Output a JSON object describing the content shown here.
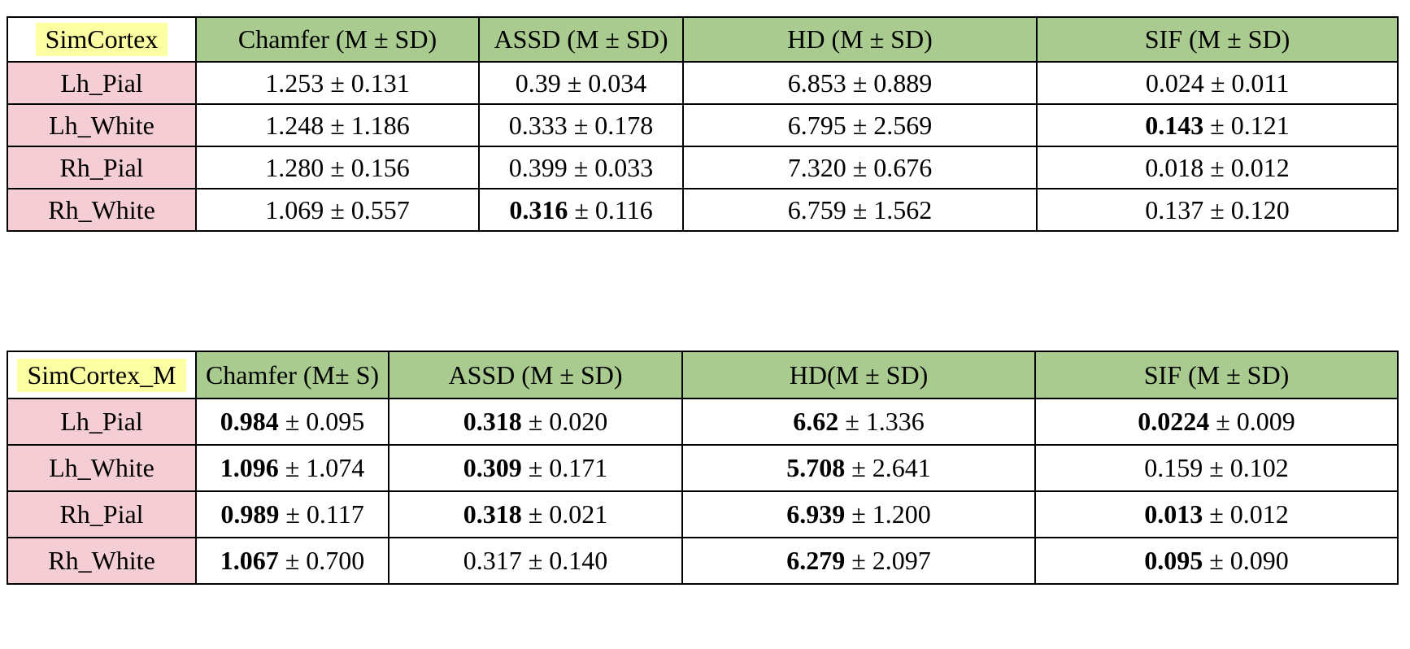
{
  "colors": {
    "header_green": "#a9cb8f",
    "row_pink": "#f5ced5",
    "highlight_yellow": "#fdffa3",
    "border_black": "#000000"
  },
  "plus_minus_symbol": "±",
  "tables": [
    {
      "name_label": "SimCortex",
      "column_headers": [
        "Chamfer (M ± SD)",
        "ASSD (M ± SD)",
        "HD (M ± SD)",
        "SIF (M ± SD)"
      ],
      "rows": [
        {
          "label": "Lh_Pial",
          "cells": [
            {
              "mean": "1.253",
              "sd": "0.131",
              "bold_mean": false
            },
            {
              "mean": "0.39",
              "sd": "0.034",
              "bold_mean": false
            },
            {
              "mean": "6.853",
              "sd": "0.889",
              "bold_mean": false
            },
            {
              "mean": "0.024",
              "sd": "0.011",
              "bold_mean": false
            }
          ]
        },
        {
          "label": "Lh_White",
          "cells": [
            {
              "mean": "1.248",
              "sd": "1.186",
              "bold_mean": false
            },
            {
              "mean": "0.333",
              "sd": "0.178",
              "bold_mean": false
            },
            {
              "mean": "6.795",
              "sd": "2.569",
              "bold_mean": false
            },
            {
              "mean": "0.143",
              "sd": "0.121",
              "bold_mean": true
            }
          ]
        },
        {
          "label": "Rh_Pial",
          "cells": [
            {
              "mean": "1.280",
              "sd": "0.156",
              "bold_mean": false
            },
            {
              "mean": "0.399",
              "sd": "0.033",
              "bold_mean": false
            },
            {
              "mean": "7.320",
              "sd": "0.676",
              "bold_mean": false
            },
            {
              "mean": "0.018",
              "sd": "0.012",
              "bold_mean": false
            }
          ]
        },
        {
          "label": "Rh_White",
          "cells": [
            {
              "mean": "1.069",
              "sd": "0.557",
              "bold_mean": false
            },
            {
              "mean": "0.316",
              "sd": "0.116",
              "bold_mean": true
            },
            {
              "mean": "6.759",
              "sd": "1.562",
              "bold_mean": false
            },
            {
              "mean": "0.137",
              "sd": "0.120",
              "bold_mean": false
            }
          ]
        }
      ]
    },
    {
      "name_label": "SimCortex_M",
      "column_headers": [
        "Chamfer (M± S)",
        "ASSD (M ± SD)",
        "HD(M ± SD)",
        "SIF (M ± SD)"
      ],
      "rows": [
        {
          "label": "Lh_Pial",
          "cells": [
            {
              "mean": "0.984",
              "sd": "0.095",
              "bold_mean": true
            },
            {
              "mean": "0.318",
              "sd": "0.020",
              "bold_mean": true
            },
            {
              "mean": "6.62",
              "sd": "1.336",
              "bold_mean": true
            },
            {
              "mean": "0.0224",
              "sd": "0.009",
              "bold_mean": true
            }
          ]
        },
        {
          "label": "Lh_White",
          "cells": [
            {
              "mean": "1.096",
              "sd": "1.074",
              "bold_mean": true
            },
            {
              "mean": "0.309",
              "sd": "0.171",
              "bold_mean": true
            },
            {
              "mean": "5.708",
              "sd": "2.641",
              "bold_mean": true
            },
            {
              "mean": "0.159",
              "sd": "0.102",
              "bold_mean": false
            }
          ]
        },
        {
          "label": "Rh_Pial",
          "cells": [
            {
              "mean": "0.989",
              "sd": "0.117",
              "bold_mean": true
            },
            {
              "mean": "0.318",
              "sd": "0.021",
              "bold_mean": true
            },
            {
              "mean": "6.939",
              "sd": "1.200",
              "bold_mean": true
            },
            {
              "mean": "0.013",
              "sd": "0.012",
              "bold_mean": true
            }
          ]
        },
        {
          "label": "Rh_White",
          "cells": [
            {
              "mean": "1.067",
              "sd": "0.700",
              "bold_mean": true
            },
            {
              "mean": "0.317",
              "sd": "0.140",
              "bold_mean": false
            },
            {
              "mean": "6.279",
              "sd": "2.097",
              "bold_mean": true
            },
            {
              "mean": "0.095",
              "sd": "0.090",
              "bold_mean": true
            }
          ]
        }
      ]
    }
  ]
}
